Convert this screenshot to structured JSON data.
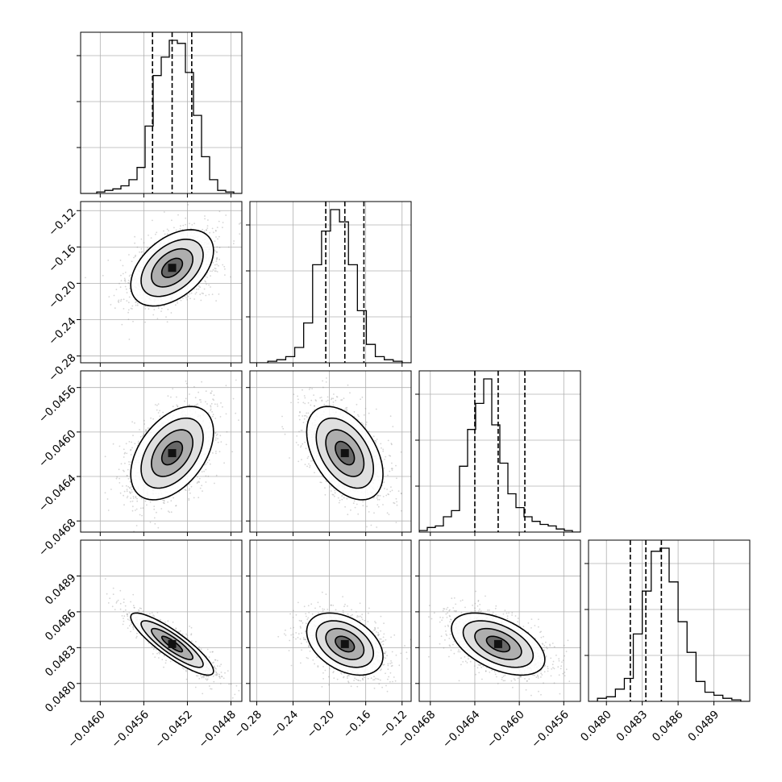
{
  "chart_data": {
    "type": "corner",
    "title": "",
    "grid": true,
    "parameters": [
      {
        "key": "p0",
        "label": "",
        "range": [
          -0.04618,
          -0.0447
        ],
        "ticks": [
          -0.046,
          -0.0456,
          -0.0452,
          -0.0448
        ],
        "tick_labels": [
          "−0.0460",
          "−0.0456",
          "−0.0452",
          "−0.0448"
        ],
        "mean": -0.04534,
        "std": 0.00019,
        "quantiles": [
          -0.04552,
          -0.04534,
          -0.04516
        ],
        "hist_bins": [
          0,
          0,
          1,
          2,
          3,
          5,
          9,
          17,
          44,
          77,
          89,
          100,
          98,
          79,
          51,
          24,
          9,
          2,
          1,
          0
        ]
      },
      {
        "key": "p1",
        "label": "",
        "range": [
          -0.2875,
          -0.11
        ],
        "ticks": [
          -0.28,
          -0.24,
          -0.2,
          -0.16,
          -0.12
        ],
        "tick_labels": [
          "−0.28",
          "−0.24",
          "−0.20",
          "−0.16",
          "−0.12"
        ],
        "mean": -0.183,
        "std": 0.021,
        "quantiles": [
          -0.204,
          -0.183,
          -0.162
        ],
        "hist_bins": [
          0,
          0,
          1,
          2,
          4,
          10,
          26,
          64,
          86,
          100,
          92,
          64,
          34,
          12,
          4,
          2,
          1,
          0
        ]
      },
      {
        "key": "p2",
        "label": "",
        "range": [
          -0.0469,
          -0.04545
        ],
        "ticks": [
          -0.0468,
          -0.0464,
          -0.046,
          -0.0456
        ],
        "tick_labels": [
          "−0.0468",
          "−0.0464",
          "−0.0460",
          "−0.0456"
        ],
        "mean": -0.04619,
        "std": 0.00021,
        "quantiles": [
          -0.0464,
          -0.04619,
          -0.04595
        ],
        "hist_bins": [
          1,
          3,
          4,
          10,
          14,
          43,
          67,
          84,
          100,
          70,
          45,
          25,
          16,
          10,
          7,
          5,
          4,
          2,
          1,
          0
        ]
      },
      {
        "key": "p3",
        "label": "",
        "range": [
          0.04785,
          0.0492
        ],
        "ticks": [
          0.048,
          0.0483,
          0.0486,
          0.0489
        ],
        "tick_labels": [
          "0.0480",
          "0.0483",
          "0.0486",
          "0.0489"
        ],
        "mean": 0.04833,
        "std": 0.00013,
        "quantiles": [
          0.0482,
          0.04833,
          0.04846
        ],
        "hist_bins": [
          0,
          2,
          3,
          8,
          15,
          44,
          72,
          98,
          100,
          78,
          52,
          32,
          13,
          6,
          4,
          2,
          1,
          0
        ]
      }
    ],
    "correlations": [
      {
        "pair": [
          1,
          0
        ],
        "rho": 0.45
      },
      {
        "pair": [
          2,
          0
        ],
        "rho": 0.45
      },
      {
        "pair": [
          2,
          1
        ],
        "rho": -0.45
      },
      {
        "pair": [
          3,
          0
        ],
        "rho": -0.87
      },
      {
        "pair": [
          3,
          1
        ],
        "rho": -0.4
      },
      {
        "pair": [
          3,
          2
        ],
        "rho": -0.5
      }
    ],
    "contour_levels_sigma": [
      0.5,
      1.0,
      1.5,
      2.0
    ]
  },
  "colors": {
    "frame": "#000000",
    "grid": "#b0b0b0",
    "points": "#888888",
    "contour": "#000000"
  }
}
